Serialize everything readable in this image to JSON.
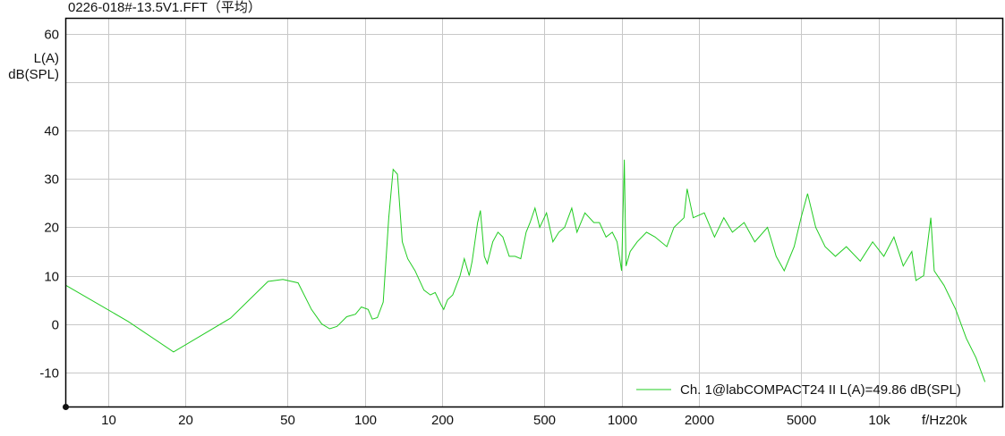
{
  "chart_data": {
    "type": "line",
    "title": "0226-018#-13.5V1.FFT（平均）",
    "ylabel": [
      "L(A)",
      "dB(SPL)"
    ],
    "xlabel": "f/Hz",
    "x_scale": "log",
    "xlim": [
      6.85,
      30500
    ],
    "ylim": [
      -17.2,
      63.3
    ],
    "grid": true,
    "legend_position": "bottom-right",
    "x_ticks": [
      {
        "v": 10,
        "label": "10"
      },
      {
        "v": 20,
        "label": "20"
      },
      {
        "v": 50,
        "label": "50"
      },
      {
        "v": 100,
        "label": "100"
      },
      {
        "v": 200,
        "label": "200"
      },
      {
        "v": 500,
        "label": "500"
      },
      {
        "v": 1000,
        "label": "1000"
      },
      {
        "v": 2000,
        "label": "2000"
      },
      {
        "v": 5000,
        "label": "5000"
      },
      {
        "v": 10000,
        "label": "10k"
      },
      {
        "v": 20000,
        "label": "20k"
      }
    ],
    "y_ticks": [
      {
        "v": 60,
        "label": "60"
      },
      {
        "v": 50,
        "label": ""
      },
      {
        "v": 40,
        "label": "40"
      },
      {
        "v": 30,
        "label": "30"
      },
      {
        "v": 20,
        "label": "20"
      },
      {
        "v": 10,
        "label": "10"
      },
      {
        "v": 0,
        "label": "0"
      },
      {
        "v": -10,
        "label": "-10"
      }
    ],
    "series": [
      {
        "name": "Ch. 1@labCOMPACT24 II L(A)=49.86 dB(SPL)",
        "color": "#22cc22",
        "points": [
          [
            6.85,
            8
          ],
          [
            12,
            0.5
          ],
          [
            18,
            -5.8
          ],
          [
            30,
            1.2
          ],
          [
            42,
            8.8
          ],
          [
            48,
            9.2
          ],
          [
            55,
            8.5
          ],
          [
            62,
            3
          ],
          [
            68,
            0
          ],
          [
            73,
            -1
          ],
          [
            78,
            -0.5
          ],
          [
            85,
            1.5
          ],
          [
            92,
            2
          ],
          [
            97,
            3.5
          ],
          [
            103,
            3
          ],
          [
            107,
            1
          ],
          [
            112,
            1.3
          ],
          [
            118,
            4.5
          ],
          [
            124,
            22
          ],
          [
            129,
            32
          ],
          [
            134,
            31
          ],
          [
            140,
            17
          ],
          [
            147,
            13.5
          ],
          [
            157,
            11
          ],
          [
            170,
            7
          ],
          [
            180,
            6
          ],
          [
            188,
            6.5
          ],
          [
            198,
            4
          ],
          [
            203,
            3
          ],
          [
            210,
            5
          ],
          [
            220,
            6
          ],
          [
            235,
            10
          ],
          [
            244,
            13.5
          ],
          [
            255,
            10
          ],
          [
            262,
            13
          ],
          [
            275,
            21
          ],
          [
            282,
            23.5
          ],
          [
            292,
            14
          ],
          [
            300,
            12.5
          ],
          [
            315,
            17
          ],
          [
            330,
            19
          ],
          [
            345,
            18
          ],
          [
            365,
            14
          ],
          [
            385,
            14
          ],
          [
            405,
            13.5
          ],
          [
            425,
            19
          ],
          [
            440,
            21
          ],
          [
            460,
            24
          ],
          [
            480,
            20
          ],
          [
            510,
            23
          ],
          [
            540,
            17
          ],
          [
            570,
            19
          ],
          [
            600,
            20
          ],
          [
            640,
            24
          ],
          [
            670,
            19
          ],
          [
            720,
            23
          ],
          [
            780,
            21
          ],
          [
            820,
            21
          ],
          [
            870,
            18
          ],
          [
            920,
            19
          ],
          [
            960,
            17
          ],
          [
            1000,
            11
          ],
          [
            1025,
            34
          ],
          [
            1040,
            12
          ],
          [
            1080,
            15
          ],
          [
            1150,
            17
          ],
          [
            1250,
            19
          ],
          [
            1350,
            18
          ],
          [
            1500,
            16
          ],
          [
            1600,
            20
          ],
          [
            1750,
            22
          ],
          [
            1800,
            28
          ],
          [
            1900,
            22
          ],
          [
            2100,
            23
          ],
          [
            2300,
            18
          ],
          [
            2500,
            22
          ],
          [
            2700,
            19
          ],
          [
            3000,
            21
          ],
          [
            3300,
            17
          ],
          [
            3700,
            20
          ],
          [
            4000,
            14
          ],
          [
            4300,
            11
          ],
          [
            4700,
            16
          ],
          [
            5000,
            22
          ],
          [
            5300,
            27
          ],
          [
            5700,
            20
          ],
          [
            6200,
            16
          ],
          [
            6800,
            14
          ],
          [
            7500,
            16
          ],
          [
            8500,
            13
          ],
          [
            9500,
            17
          ],
          [
            10500,
            14
          ],
          [
            11500,
            18
          ],
          [
            12500,
            12
          ],
          [
            13500,
            15
          ],
          [
            14000,
            9
          ],
          [
            15000,
            10
          ],
          [
            16000,
            22
          ],
          [
            16500,
            11
          ],
          [
            18000,
            8
          ],
          [
            20000,
            3
          ],
          [
            22000,
            -3
          ],
          [
            24000,
            -7
          ],
          [
            26000,
            -12
          ]
        ]
      }
    ]
  }
}
